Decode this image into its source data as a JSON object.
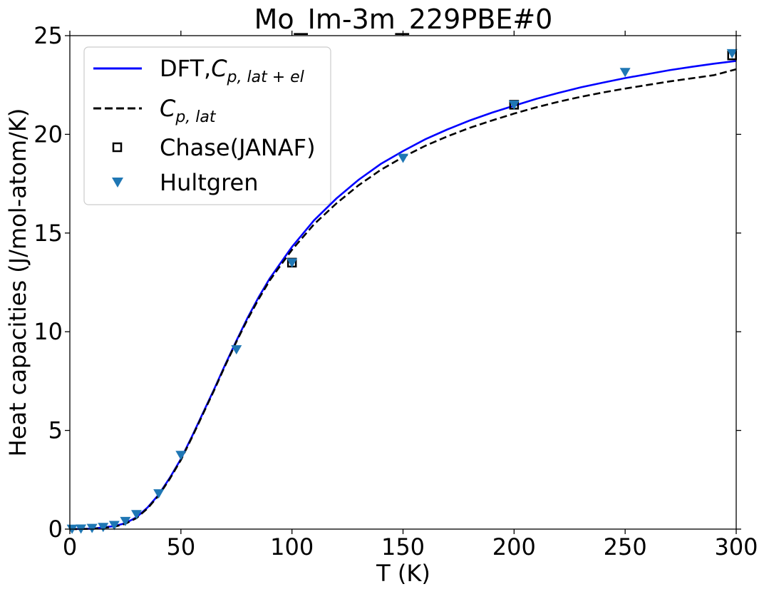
{
  "chart_data": {
    "type": "line",
    "title": "Mo_Im-3m_229PBE#0",
    "xlabel": "T (K)",
    "ylabel": "Heat capacities (J/mol-atom/K)",
    "xlim": [
      0,
      300
    ],
    "ylim": [
      0,
      25
    ],
    "xticks": [
      0,
      50,
      100,
      150,
      200,
      250,
      300
    ],
    "yticks": [
      0,
      5,
      10,
      15,
      20,
      25
    ],
    "grid": false,
    "legend_position": "top-left",
    "series": [
      {
        "name": "DFT,C_{p,lat+el}",
        "style": "solid-line",
        "color": "#0000ff",
        "x": [
          0,
          10,
          20,
          25,
          30,
          35,
          40,
          45,
          50,
          55,
          60,
          65,
          70,
          75,
          80,
          85,
          90,
          95,
          100,
          110,
          120,
          130,
          140,
          150,
          160,
          170,
          180,
          190,
          200,
          210,
          220,
          230,
          240,
          250,
          260,
          270,
          280,
          290,
          300
        ],
        "y": [
          0,
          0.02,
          0.15,
          0.3,
          0.6,
          1.1,
          1.75,
          2.6,
          3.55,
          4.7,
          5.9,
          7.1,
          8.35,
          9.55,
          10.7,
          11.75,
          12.7,
          13.5,
          14.3,
          15.65,
          16.75,
          17.7,
          18.5,
          19.15,
          19.75,
          20.25,
          20.7,
          21.1,
          21.45,
          21.8,
          22.1,
          22.38,
          22.62,
          22.85,
          23.05,
          23.25,
          23.42,
          23.58,
          23.72
        ]
      },
      {
        "name": "C_{p,lat}",
        "style": "dashed-line",
        "color": "#000000",
        "x": [
          0,
          10,
          20,
          25,
          30,
          35,
          40,
          45,
          50,
          55,
          60,
          65,
          70,
          75,
          80,
          85,
          90,
          95,
          100,
          110,
          120,
          130,
          140,
          150,
          160,
          170,
          180,
          190,
          200,
          210,
          220,
          230,
          240,
          250,
          260,
          270,
          280,
          290,
          300
        ],
        "y": [
          0,
          0.01,
          0.12,
          0.27,
          0.56,
          1.05,
          1.7,
          2.55,
          3.5,
          4.65,
          5.85,
          7.05,
          8.3,
          9.5,
          10.62,
          11.65,
          12.6,
          13.38,
          14.15,
          15.45,
          16.5,
          17.42,
          18.2,
          18.85,
          19.42,
          19.9,
          20.33,
          20.7,
          21.05,
          21.37,
          21.65,
          21.9,
          22.12,
          22.32,
          22.5,
          22.68,
          22.84,
          23.0,
          23.3
        ]
      },
      {
        "name": "Chase(JANAF)",
        "style": "square-marker",
        "color": "#000000",
        "x": [
          100,
          200,
          298.15
        ],
        "y": [
          13.5,
          21.5,
          24.0
        ]
      },
      {
        "name": "Hultgren",
        "style": "triangle-down-marker",
        "color": "#1f77b4",
        "x": [
          1,
          5,
          10,
          15,
          20,
          25,
          30,
          40,
          50,
          75,
          100,
          150,
          200,
          250,
          298.15
        ],
        "y": [
          0.01,
          0.02,
          0.05,
          0.1,
          0.2,
          0.4,
          0.75,
          1.8,
          3.75,
          9.1,
          13.5,
          18.8,
          21.5,
          23.15,
          24.1
        ]
      }
    ]
  }
}
